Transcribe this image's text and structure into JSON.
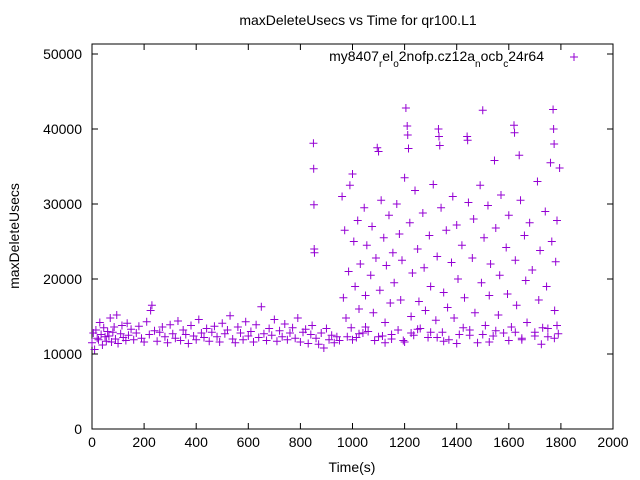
{
  "chart_data": {
    "type": "scatter",
    "title": "maxDeleteUsecs vs Time for qr100.L1",
    "xlabel": "Time(s)",
    "ylabel": "maxDeleteUsecs",
    "xlim": [
      0,
      2000
    ],
    "ylim": [
      0,
      50000
    ],
    "xticks": [
      "0",
      "200",
      "400",
      "600",
      "800",
      "1000",
      "1200",
      "1400",
      "1600",
      "1800",
      "2000"
    ],
    "yticks": [
      "0",
      "10000",
      "20000",
      "30000",
      "40000",
      "50000"
    ],
    "grid": false,
    "legend_position": "top-right",
    "series": [
      {
        "name": "my8407_rel_o2nofp.cz12a_nocb_c24r64",
        "legend_parts": [
          {
            "t": "my8407",
            "sub": false
          },
          {
            "t": "r",
            "sub": true
          },
          {
            "t": "el",
            "sub": false
          },
          {
            "t": "o",
            "sub": true
          },
          {
            "t": "2nofp.cz12a",
            "sub": false
          },
          {
            "t": "n",
            "sub": true
          },
          {
            "t": "ocb",
            "sub": false
          },
          {
            "t": "c",
            "sub": true
          },
          {
            "t": "24r64",
            "sub": false
          }
        ],
        "color": "#9400D3",
        "marker": "plus",
        "points": [
          [
            0,
            11500
          ],
          [
            5,
            12800
          ],
          [
            10,
            10600
          ],
          [
            15,
            13200
          ],
          [
            20,
            12100
          ],
          [
            25,
            11900
          ],
          [
            30,
            14200
          ],
          [
            35,
            12600
          ],
          [
            40,
            11200
          ],
          [
            45,
            13500
          ],
          [
            50,
            12300
          ],
          [
            55,
            11700
          ],
          [
            60,
            13000
          ],
          [
            65,
            12400
          ],
          [
            70,
            14800
          ],
          [
            75,
            11600
          ],
          [
            80,
            12900
          ],
          [
            85,
            13600
          ],
          [
            90,
            12000
          ],
          [
            95,
            15200
          ],
          [
            100,
            11400
          ],
          [
            110,
            12700
          ],
          [
            115,
            13800
          ],
          [
            120,
            12200
          ],
          [
            130,
            11800
          ],
          [
            135,
            14100
          ],
          [
            140,
            12500
          ],
          [
            150,
            13300
          ],
          [
            160,
            11900
          ],
          [
            170,
            12800
          ],
          [
            180,
            13700
          ],
          [
            190,
            12100
          ],
          [
            200,
            11600
          ],
          [
            210,
            14300
          ],
          [
            220,
            12600
          ],
          [
            225,
            15800
          ],
          [
            230,
            16500
          ],
          [
            240,
            13100
          ],
          [
            250,
            11700
          ],
          [
            260,
            12900
          ],
          [
            270,
            13600
          ],
          [
            280,
            12300
          ],
          [
            290,
            11500
          ],
          [
            300,
            13900
          ],
          [
            310,
            12700
          ],
          [
            320,
            12100
          ],
          [
            330,
            14400
          ],
          [
            340,
            11800
          ],
          [
            350,
            13200
          ],
          [
            360,
            12600
          ],
          [
            370,
            11400
          ],
          [
            380,
            13800
          ],
          [
            390,
            12400
          ],
          [
            400,
            11900
          ],
          [
            410,
            14600
          ],
          [
            420,
            12800
          ],
          [
            430,
            12200
          ],
          [
            440,
            13400
          ],
          [
            450,
            11700
          ],
          [
            460,
            12900
          ],
          [
            470,
            13700
          ],
          [
            480,
            12300
          ],
          [
            490,
            11600
          ],
          [
            500,
            14100
          ],
          [
            510,
            12700
          ],
          [
            520,
            13200
          ],
          [
            530,
            15100
          ],
          [
            540,
            12000
          ],
          [
            550,
            11500
          ],
          [
            560,
            13600
          ],
          [
            570,
            12800
          ],
          [
            580,
            11900
          ],
          [
            590,
            14300
          ],
          [
            600,
            12400
          ],
          [
            610,
            13000
          ],
          [
            620,
            11600
          ],
          [
            630,
            13900
          ],
          [
            640,
            12200
          ],
          [
            650,
            16300
          ],
          [
            660,
            12700
          ],
          [
            670,
            11800
          ],
          [
            680,
            13400
          ],
          [
            690,
            12500
          ],
          [
            700,
            14600
          ],
          [
            710,
            11700
          ],
          [
            720,
            13100
          ],
          [
            730,
            12300
          ],
          [
            740,
            14000
          ],
          [
            750,
            11900
          ],
          [
            760,
            12800
          ],
          [
            770,
            13500
          ],
          [
            780,
            12100
          ],
          [
            790,
            14800
          ],
          [
            800,
            11600
          ],
          [
            810,
            12900
          ],
          [
            820,
            13300
          ],
          [
            830,
            11400
          ],
          [
            840,
            12600
          ],
          [
            845,
            13800
          ],
          [
            850,
            38100
          ],
          [
            851,
            34700
          ],
          [
            852,
            29900
          ],
          [
            853,
            24000
          ],
          [
            854,
            23500
          ],
          [
            860,
            12100
          ],
          [
            870,
            11300
          ],
          [
            880,
            12800
          ],
          [
            890,
            10800
          ],
          [
            900,
            13400
          ],
          [
            910,
            11900
          ],
          [
            920,
            12500
          ],
          [
            930,
            11500
          ],
          [
            940,
            12300
          ],
          [
            950,
            11800
          ],
          [
            960,
            31000
          ],
          [
            965,
            17500
          ],
          [
            970,
            26500
          ],
          [
            975,
            14800
          ],
          [
            980,
            12300
          ],
          [
            985,
            21000
          ],
          [
            990,
            32500
          ],
          [
            995,
            13500
          ],
          [
            1000,
            34000
          ],
          [
            1005,
            25000
          ],
          [
            1010,
            19000
          ],
          [
            1015,
            12200
          ],
          [
            1020,
            27800
          ],
          [
            1025,
            16000
          ],
          [
            1030,
            22000
          ],
          [
            1040,
            12800
          ],
          [
            1045,
            29500
          ],
          [
            1050,
            17800
          ],
          [
            1055,
            24500
          ],
          [
            1060,
            13000
          ],
          [
            1070,
            20500
          ],
          [
            1075,
            27000
          ],
          [
            1080,
            15500
          ],
          [
            1085,
            11800
          ],
          [
            1090,
            22800
          ],
          [
            1095,
            37500
          ],
          [
            1100,
            37000
          ],
          [
            1105,
            18500
          ],
          [
            1110,
            30500
          ],
          [
            1115,
            12400
          ],
          [
            1120,
            25500
          ],
          [
            1125,
            14200
          ],
          [
            1130,
            21800
          ],
          [
            1140,
            28500
          ],
          [
            1145,
            16800
          ],
          [
            1150,
            12600
          ],
          [
            1155,
            23500
          ],
          [
            1160,
            19500
          ],
          [
            1170,
            30000
          ],
          [
            1175,
            13200
          ],
          [
            1180,
            26000
          ],
          [
            1185,
            17200
          ],
          [
            1190,
            22500
          ],
          [
            1195,
            11800
          ],
          [
            1200,
            33500
          ],
          [
            1205,
            42800
          ],
          [
            1210,
            40400
          ],
          [
            1212,
            39200
          ],
          [
            1215,
            37400
          ],
          [
            1220,
            27500
          ],
          [
            1225,
            15000
          ],
          [
            1230,
            20800
          ],
          [
            1235,
            12500
          ],
          [
            1240,
            31800
          ],
          [
            1250,
            24000
          ],
          [
            1255,
            17000
          ],
          [
            1260,
            13400
          ],
          [
            1270,
            28800
          ],
          [
            1275,
            21500
          ],
          [
            1280,
            15800
          ],
          [
            1290,
            12200
          ],
          [
            1295,
            25800
          ],
          [
            1300,
            19000
          ],
          [
            1310,
            32600
          ],
          [
            1320,
            14500
          ],
          [
            1325,
            23000
          ],
          [
            1330,
            40000
          ],
          [
            1332,
            39000
          ],
          [
            1335,
            37800
          ],
          [
            1340,
            29500
          ],
          [
            1345,
            12900
          ],
          [
            1350,
            18200
          ],
          [
            1360,
            26500
          ],
          [
            1365,
            16200
          ],
          [
            1370,
            11900
          ],
          [
            1380,
            22200
          ],
          [
            1385,
            31000
          ],
          [
            1390,
            14800
          ],
          [
            1400,
            27200
          ],
          [
            1405,
            20000
          ],
          [
            1410,
            12600
          ],
          [
            1420,
            24500
          ],
          [
            1430,
            17500
          ],
          [
            1440,
            39000
          ],
          [
            1442,
            38500
          ],
          [
            1445,
            30200
          ],
          [
            1450,
            13200
          ],
          [
            1460,
            22800
          ],
          [
            1465,
            28000
          ],
          [
            1470,
            15500
          ],
          [
            1480,
            11500
          ],
          [
            1490,
            32500
          ],
          [
            1495,
            19500
          ],
          [
            1500,
            42500
          ],
          [
            1505,
            25500
          ],
          [
            1510,
            13800
          ],
          [
            1520,
            29800
          ],
          [
            1525,
            17800
          ],
          [
            1530,
            22000
          ],
          [
            1540,
            12400
          ],
          [
            1545,
            35800
          ],
          [
            1550,
            26800
          ],
          [
            1560,
            15200
          ],
          [
            1565,
            20500
          ],
          [
            1570,
            31200
          ],
          [
            1580,
            12800
          ],
          [
            1590,
            24200
          ],
          [
            1595,
            18000
          ],
          [
            1600,
            28500
          ],
          [
            1610,
            13600
          ],
          [
            1620,
            40500
          ],
          [
            1622,
            39500
          ],
          [
            1625,
            22500
          ],
          [
            1630,
            16500
          ],
          [
            1640,
            36500
          ],
          [
            1645,
            30500
          ],
          [
            1650,
            12100
          ],
          [
            1660,
            25800
          ],
          [
            1665,
            19800
          ],
          [
            1670,
            14200
          ],
          [
            1680,
            27500
          ],
          [
            1690,
            21200
          ],
          [
            1700,
            12900
          ],
          [
            1710,
            33000
          ],
          [
            1715,
            17200
          ],
          [
            1720,
            23800
          ],
          [
            1730,
            13500
          ],
          [
            1740,
            29000
          ],
          [
            1745,
            19000
          ],
          [
            1750,
            12300
          ],
          [
            1760,
            35500
          ],
          [
            1765,
            25000
          ],
          [
            1770,
            42600
          ],
          [
            1772,
            40000
          ],
          [
            1774,
            38000
          ],
          [
            1776,
            15800
          ],
          [
            1780,
            22300
          ],
          [
            1785,
            27800
          ],
          [
            1790,
            12700
          ],
          [
            1795,
            34800
          ],
          [
            1785,
            13800
          ],
          [
            1000,
            11900
          ],
          [
            1100,
            12300
          ],
          [
            1200,
            11600
          ],
          [
            1300,
            12900
          ],
          [
            1400,
            11400
          ],
          [
            1500,
            12600
          ],
          [
            1600,
            11800
          ],
          [
            1700,
            12400
          ],
          [
            1050,
            13600
          ],
          [
            1150,
            12000
          ],
          [
            1250,
            13300
          ],
          [
            1350,
            11700
          ],
          [
            1450,
            12500
          ],
          [
            1550,
            13100
          ],
          [
            1650,
            11900
          ],
          [
            1750,
            13400
          ],
          [
            1025,
            12700
          ],
          [
            1125,
            11500
          ],
          [
            1225,
            12800
          ],
          [
            1325,
            12200
          ],
          [
            1425,
            13500
          ],
          [
            1525,
            11600
          ],
          [
            1625,
            12900
          ],
          [
            1725,
            11300
          ],
          [
            1775,
            12100
          ]
        ]
      }
    ]
  }
}
